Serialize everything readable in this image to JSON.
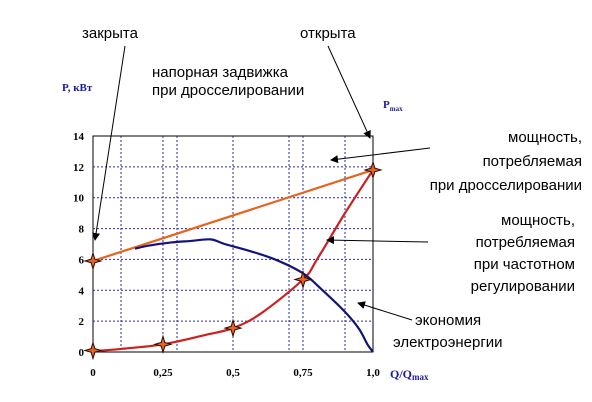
{
  "chart_data": {
    "type": "line",
    "title": "напорная задвижка\nпри  дросселировании",
    "ylabel": "P, кВт",
    "xlabel_main": "Q/Q",
    "xlabel_sub": "max",
    "pmax_main": "P",
    "pmax_sub": "max",
    "xlim": [
      0,
      1.0
    ],
    "ylim": [
      0,
      14
    ],
    "grid": true,
    "x_ticks": [
      0,
      0.25,
      0.5,
      0.75,
      1.0
    ],
    "x_tick_labels": [
      "0",
      "0,25",
      "0,5",
      "0,75",
      "1,0"
    ],
    "y_ticks": [
      0,
      2,
      4,
      6,
      8,
      10,
      12,
      14
    ],
    "y_tick_labels": [
      "0",
      "2",
      "4",
      "6",
      "8",
      "10",
      "12",
      "14"
    ],
    "series": [
      {
        "key": "throttle",
        "color": "#e8641e",
        "x": [
          0,
          1.0
        ],
        "y": [
          5.9,
          11.8
        ]
      },
      {
        "key": "frequency",
        "color": "#cc1f1f",
        "x": [
          0,
          0.1,
          0.25,
          0.4,
          0.5,
          0.6,
          0.75,
          0.8,
          0.9,
          1.0
        ],
        "y": [
          0.05,
          0.2,
          0.5,
          1.1,
          1.55,
          2.5,
          4.7,
          6.0,
          9.0,
          11.8
        ]
      },
      {
        "key": "savings",
        "color": "#14147a",
        "x": [
          0.15,
          0.2,
          0.28,
          0.35,
          0.42,
          0.47,
          0.55,
          0.65,
          0.75,
          0.82,
          0.9,
          0.95,
          0.98,
          1.0
        ],
        "y": [
          6.7,
          6.9,
          7.1,
          7.2,
          7.3,
          7.0,
          6.6,
          6.0,
          5.1,
          4.0,
          2.6,
          1.5,
          0.5,
          0.0
        ]
      }
    ],
    "markers": {
      "color": "#e8641e",
      "stroke": "#2a0a0a",
      "x": [
        0,
        0,
        0.25,
        0.5,
        0.75,
        1.0
      ],
      "y": [
        0.1,
        5.9,
        0.5,
        1.55,
        4.7,
        11.8
      ]
    },
    "annotations": {
      "closed": "закрыта",
      "open": "открыта",
      "throttle_power": [
        "мощность,",
        "потребляемая",
        "при дросселировании"
      ],
      "frequency_power": [
        "мощность,",
        "потребляемая",
        "при частотном",
        "регулировании"
      ],
      "savings": [
        "экономия",
        "электроэнергии"
      ]
    },
    "colors": {
      "grid": "#2a2aa0",
      "axis_title": "#1a1aa0"
    }
  }
}
